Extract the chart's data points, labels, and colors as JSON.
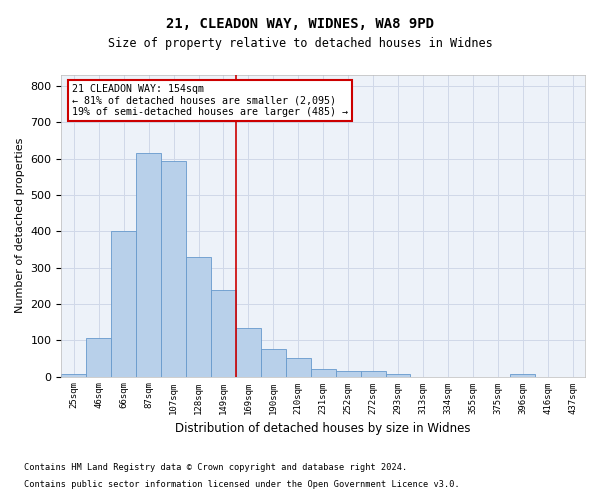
{
  "title1": "21, CLEADON WAY, WIDNES, WA8 9PD",
  "title2": "Size of property relative to detached houses in Widnes",
  "xlabel": "Distribution of detached houses by size in Widnes",
  "ylabel": "Number of detached properties",
  "footnote1": "Contains HM Land Registry data © Crown copyright and database right 2024.",
  "footnote2": "Contains public sector information licensed under the Open Government Licence v3.0.",
  "bin_labels": [
    "25sqm",
    "46sqm",
    "66sqm",
    "87sqm",
    "107sqm",
    "128sqm",
    "149sqm",
    "169sqm",
    "190sqm",
    "210sqm",
    "231sqm",
    "252sqm",
    "272sqm",
    "293sqm",
    "313sqm",
    "334sqm",
    "355sqm",
    "375sqm",
    "396sqm",
    "416sqm",
    "437sqm"
  ],
  "bar_values": [
    8,
    107,
    401,
    614,
    592,
    330,
    238,
    134,
    76,
    50,
    22,
    15,
    15,
    8,
    0,
    0,
    0,
    0,
    8,
    0,
    0
  ],
  "bar_color": "#b8d0ea",
  "bar_edgecolor": "#6699cc",
  "grid_color": "#d0d8e8",
  "bg_color": "#edf2f9",
  "vline_color": "#cc0000",
  "annotation_box_color": "#cc0000",
  "ylim": [
    0,
    830
  ],
  "yticks": [
    0,
    100,
    200,
    300,
    400,
    500,
    600,
    700,
    800
  ],
  "figsize": [
    6.0,
    5.0
  ],
  "dpi": 100
}
